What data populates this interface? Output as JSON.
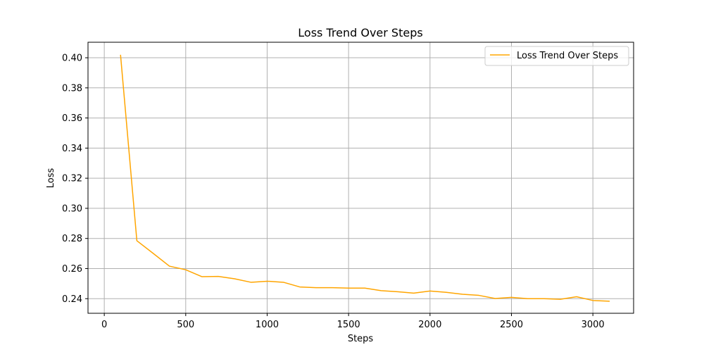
{
  "chart_data": {
    "type": "line",
    "title": "Loss Trend Over Steps",
    "xlabel": "Steps",
    "ylabel": "Loss",
    "xlim": [
      -100,
      3250
    ],
    "ylim": [
      0.2303,
      0.4103
    ],
    "xticks": [
      0,
      500,
      1000,
      1500,
      2000,
      2500,
      3000
    ],
    "xtick_labels": [
      "0",
      "500",
      "1000",
      "1500",
      "2000",
      "2500",
      "3000"
    ],
    "yticks": [
      0.24,
      0.26,
      0.28,
      0.3,
      0.32,
      0.34,
      0.36,
      0.38,
      0.4
    ],
    "ytick_labels": [
      "0.24",
      "0.26",
      "0.28",
      "0.30",
      "0.32",
      "0.34",
      "0.36",
      "0.38",
      "0.40"
    ],
    "grid": true,
    "legend_position": "top-right",
    "series": [
      {
        "name": "Loss Trend Over Steps",
        "color": "#ffa500",
        "x": [
          100,
          200,
          300,
          400,
          500,
          600,
          700,
          800,
          900,
          1000,
          1100,
          1200,
          1300,
          1400,
          1500,
          1600,
          1700,
          1800,
          1900,
          2000,
          2100,
          2200,
          2300,
          2400,
          2500,
          2600,
          2700,
          2800,
          2900,
          3000,
          3100
        ],
        "y": [
          0.4016,
          0.2785,
          0.2701,
          0.2616,
          0.2592,
          0.2546,
          0.2548,
          0.2532,
          0.2509,
          0.2516,
          0.2509,
          0.2478,
          0.2473,
          0.2473,
          0.247,
          0.247,
          0.2453,
          0.2446,
          0.2437,
          0.2451,
          0.2442,
          0.2429,
          0.2422,
          0.2401,
          0.2409,
          0.24,
          0.24,
          0.2396,
          0.2413,
          0.2388,
          0.2383
        ]
      }
    ]
  }
}
